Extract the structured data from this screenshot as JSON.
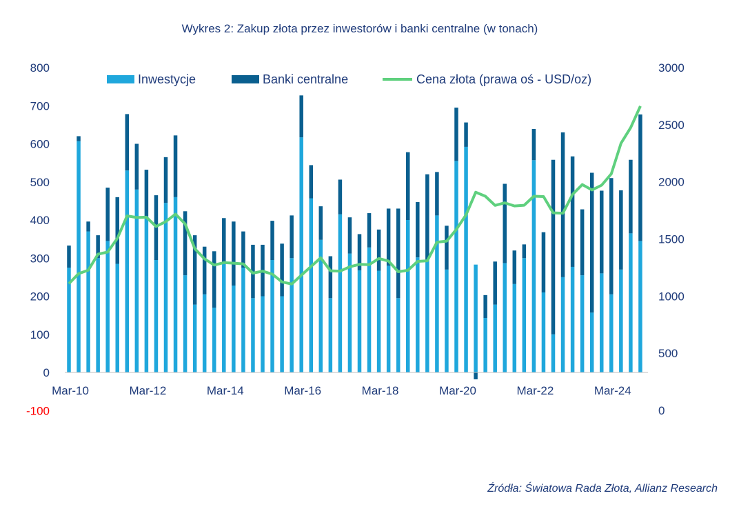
{
  "colors": {
    "investment": "#1fa7dc",
    "central_banks": "#0a5f8f",
    "price_line": "#5fd07e",
    "text": "#1f3b7a",
    "negative_tick": "#ff0000"
  },
  "source": "Źródła: Światowa Rada Złota, Allianz Research",
  "chart_data": {
    "type": "bar",
    "stacked": true,
    "title": "Wykres 2: Zakup złota przez inwestorów i banki centralne (w tonach)",
    "xlabel": "",
    "ylabel": "",
    "x_tick_labels": [
      "Mar-10",
      "Mar-12",
      "Mar-14",
      "Mar-16",
      "Mar-18",
      "Mar-20",
      "Mar-22",
      "Mar-24"
    ],
    "ylim": [
      -100,
      800
    ],
    "y_ticks": [
      "-100",
      "0",
      "100",
      "200",
      "300",
      "400",
      "500",
      "600",
      "700",
      "800"
    ],
    "y2lim": [
      0,
      3000
    ],
    "y2_ticks": [
      "0",
      "500",
      "1000",
      "1500",
      "2000",
      "2500",
      "3000"
    ],
    "legend_position": "top",
    "grid": false,
    "categories": [
      "Q1-10",
      "Q2-10",
      "Q3-10",
      "Q4-10",
      "Q1-11",
      "Q2-11",
      "Q3-11",
      "Q4-11",
      "Q1-12",
      "Q2-12",
      "Q3-12",
      "Q4-12",
      "Q1-13",
      "Q2-13",
      "Q3-13",
      "Q4-13",
      "Q1-14",
      "Q2-14",
      "Q3-14",
      "Q4-14",
      "Q1-15",
      "Q2-15",
      "Q3-15",
      "Q4-15",
      "Q1-16",
      "Q2-16",
      "Q3-16",
      "Q4-16",
      "Q1-17",
      "Q2-17",
      "Q3-17",
      "Q4-17",
      "Q1-18",
      "Q2-18",
      "Q3-18",
      "Q4-18",
      "Q1-19",
      "Q2-19",
      "Q3-19",
      "Q4-19",
      "Q1-20",
      "Q2-20",
      "Q3-20",
      "Q4-20",
      "Q1-21",
      "Q2-21",
      "Q3-21",
      "Q4-21",
      "Q1-22",
      "Q2-22",
      "Q3-22",
      "Q4-22",
      "Q1-23",
      "Q2-23",
      "Q3-23",
      "Q4-23",
      "Q1-24",
      "Q2-24",
      "Q3-24",
      "Q4-24"
    ],
    "series": [
      {
        "name": "Inwestycje",
        "axis": "left",
        "kind": "bar",
        "values": [
          275,
          607,
          370,
          300,
          345,
          285,
          530,
          480,
          410,
          295,
          445,
          460,
          255,
          178,
          205,
          170,
          290,
          228,
          275,
          195,
          200,
          295,
          200,
          300,
          617,
          457,
          348,
          195,
          415,
          312,
          268,
          328,
          267,
          280,
          195,
          400,
          302,
          295,
          412,
          270,
          555,
          592,
          283,
          143,
          178,
          287,
          232,
          300,
          557,
          210,
          100,
          250,
          277,
          255,
          157,
          260,
          205,
          270,
          365,
          345
        ]
      },
      {
        "name": "Banki centralne",
        "axis": "left",
        "kind": "bar",
        "values": [
          58,
          13,
          26,
          60,
          140,
          175,
          148,
          120,
          122,
          170,
          120,
          162,
          168,
          182,
          125,
          148,
          115,
          168,
          95,
          140,
          135,
          103,
          138,
          112,
          110,
          87,
          88,
          110,
          91,
          95,
          95,
          90,
          108,
          150,
          235,
          178,
          145,
          225,
          114,
          115,
          140,
          64,
          -18,
          60,
          113,
          208,
          88,
          36,
          82,
          158,
          458,
          380,
          290,
          173,
          367,
          217,
          305,
          208,
          193,
          332
        ]
      },
      {
        "name": "Cena złota (prawa oś - USD/oz)",
        "axis": "right",
        "kind": "line",
        "values": [
          1109,
          1197,
          1227,
          1367,
          1386,
          1506,
          1702,
          1688,
          1691,
          1609,
          1652,
          1718,
          1632,
          1415,
          1326,
          1272,
          1293,
          1288,
          1282,
          1201,
          1218,
          1192,
          1124,
          1106,
          1183,
          1260,
          1335,
          1222,
          1219,
          1257,
          1278,
          1275,
          1329,
          1306,
          1213,
          1226,
          1304,
          1309,
          1472,
          1481,
          1583,
          1711,
          1909,
          1874,
          1794,
          1816,
          1789,
          1795,
          1874,
          1871,
          1729,
          1726,
          1890,
          1976,
          1929,
          1971,
          2070,
          2338,
          2474,
          2663
        ]
      }
    ]
  }
}
